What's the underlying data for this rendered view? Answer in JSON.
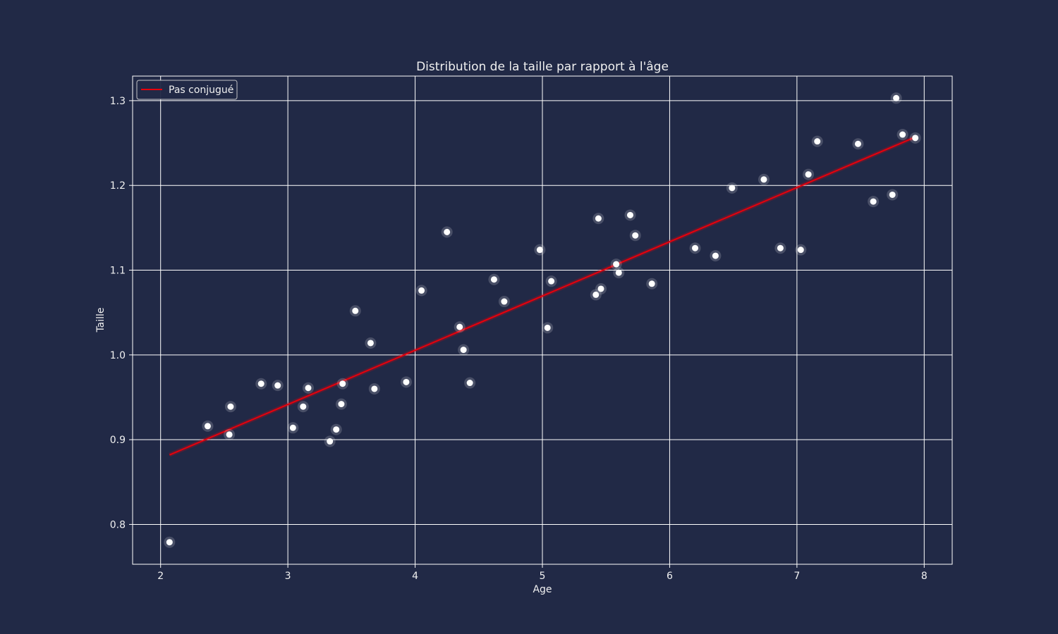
{
  "chart_data": {
    "type": "scatter",
    "title": "Distribution de la taille par rapport à l'âge",
    "xlabel": "Age",
    "ylabel": "Taille",
    "xlim": [
      1.78,
      8.22
    ],
    "ylim": [
      0.753,
      1.329
    ],
    "x_ticks": [
      2,
      3,
      4,
      5,
      6,
      7,
      8
    ],
    "y_ticks": [
      0.8,
      0.9,
      1.0,
      1.1,
      1.2,
      1.3
    ],
    "x_tick_labels": [
      "2",
      "3",
      "4",
      "5",
      "6",
      "7",
      "8"
    ],
    "y_tick_labels": [
      "0.8",
      "0.9",
      "1.0",
      "1.1",
      "1.2",
      "1.3"
    ],
    "grid": true,
    "legend_position": "top-left",
    "colors": {
      "background": "#212946",
      "grid": "#ffffff",
      "points": "#ffffff",
      "line": "#e8000b"
    },
    "points": {
      "x": [
        2.07,
        2.37,
        2.54,
        2.55,
        2.79,
        2.92,
        3.04,
        3.12,
        3.16,
        3.33,
        3.38,
        3.42,
        3.43,
        3.53,
        3.65,
        3.68,
        3.93,
        4.05,
        4.25,
        4.35,
        4.38,
        4.43,
        4.62,
        4.7,
        4.98,
        5.04,
        5.07,
        5.42,
        5.44,
        5.46,
        5.58,
        5.6,
        5.69,
        5.73,
        5.86,
        6.2,
        6.36,
        6.49,
        6.74,
        6.87,
        7.03,
        7.09,
        7.16,
        7.48,
        7.6,
        7.75,
        7.78,
        7.83,
        7.93
      ],
      "y": [
        0.779,
        0.916,
        0.906,
        0.939,
        0.966,
        0.964,
        0.914,
        0.939,
        0.961,
        0.898,
        0.912,
        0.942,
        0.966,
        1.052,
        1.014,
        0.96,
        0.968,
        1.076,
        1.145,
        1.033,
        1.006,
        0.967,
        1.089,
        1.063,
        1.124,
        1.032,
        1.087,
        1.071,
        1.161,
        1.078,
        1.107,
        1.097,
        1.165,
        1.141,
        1.084,
        1.126,
        1.117,
        1.197,
        1.207,
        1.126,
        1.124,
        1.213,
        1.252,
        1.249,
        1.181,
        1.189,
        1.303,
        1.26,
        1.256
      ]
    },
    "series": [
      {
        "name": "Pas conjugué",
        "type": "line",
        "x": [
          2.07,
          7.93
        ],
        "y": [
          0.882,
          1.257
        ]
      }
    ]
  }
}
